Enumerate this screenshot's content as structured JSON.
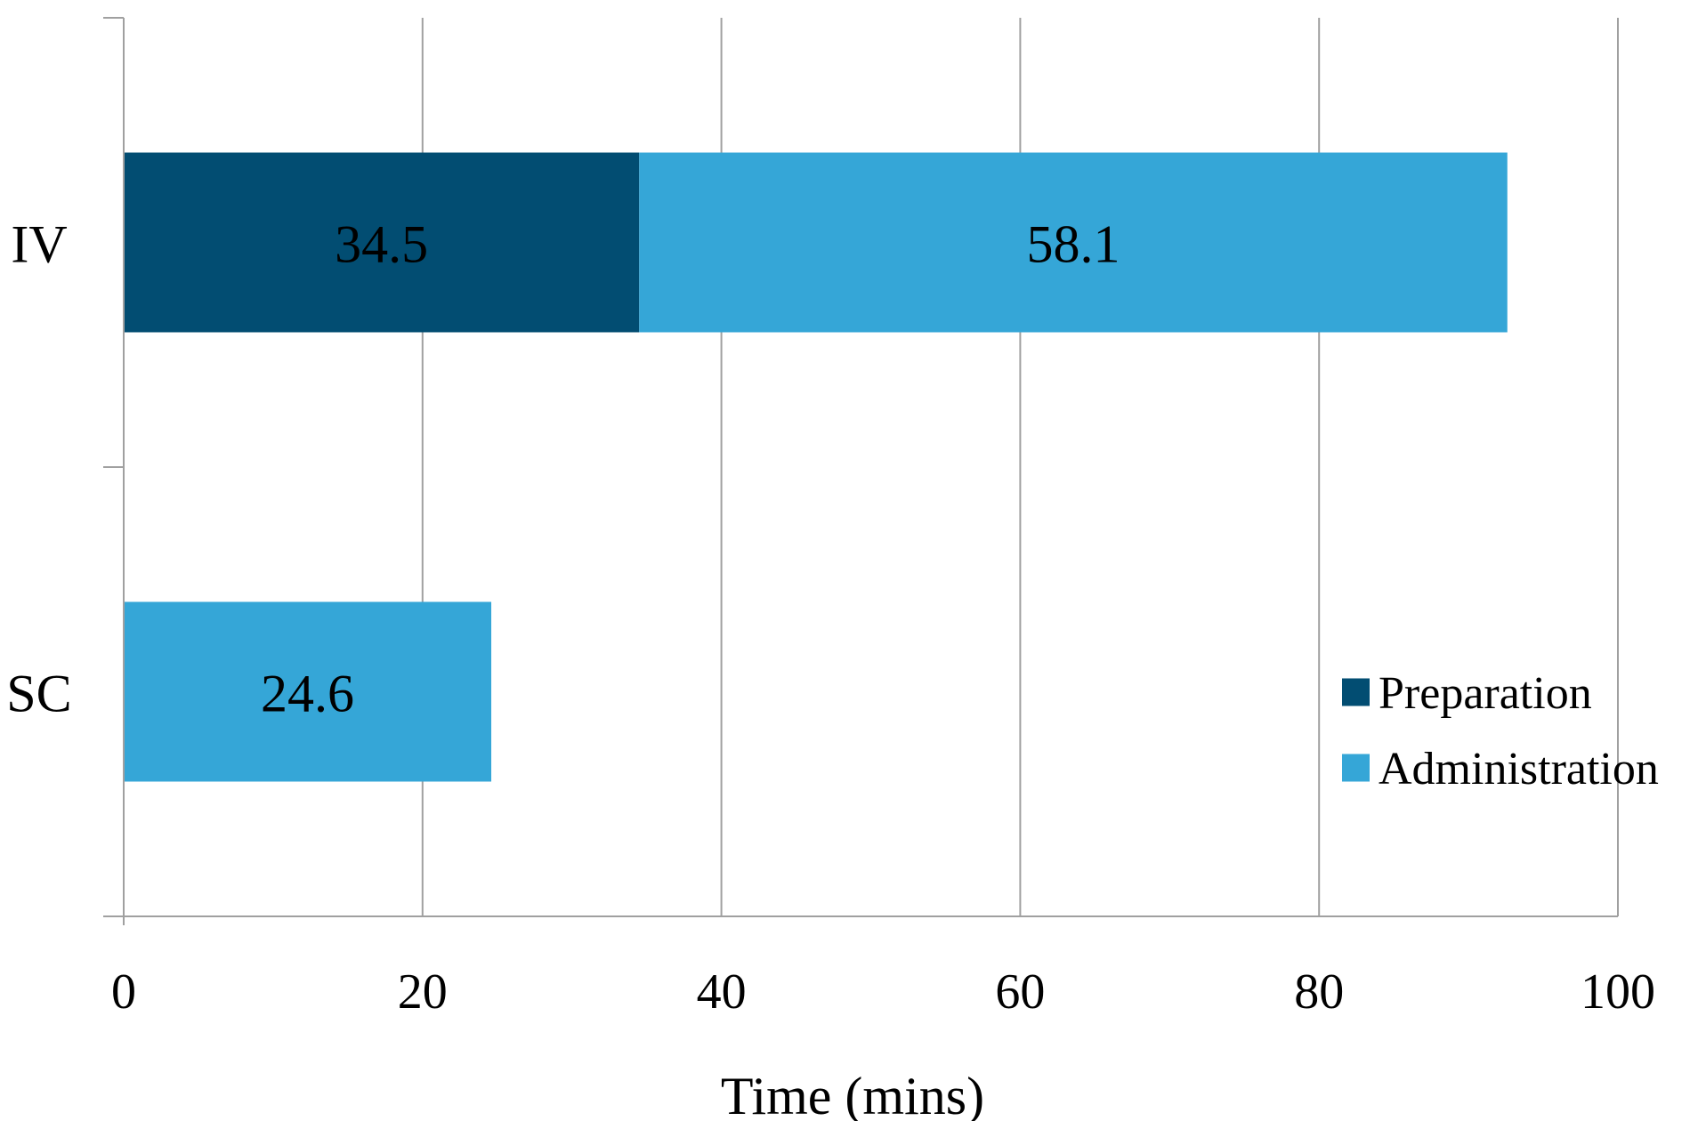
{
  "chart_data": {
    "type": "bar",
    "orientation": "horizontal",
    "stacked": true,
    "categories": [
      "IV",
      "SC"
    ],
    "series": [
      {
        "name": "Preparation",
        "values": [
          34.5,
          0
        ],
        "labels": [
          "34.5",
          ""
        ],
        "color": "#024d72"
      },
      {
        "name": "Administration",
        "values": [
          58.1,
          24.6
        ],
        "labels": [
          "58.1",
          "24.6"
        ],
        "color": "#35a6d7"
      }
    ],
    "xlabel": "Time (mins)",
    "ylabel": "",
    "title": "",
    "xlim": [
      0,
      100
    ],
    "xticks": [
      "0",
      "20",
      "40",
      "60",
      "80",
      "100"
    ],
    "grid": "vertical",
    "legend": "lower-right"
  }
}
